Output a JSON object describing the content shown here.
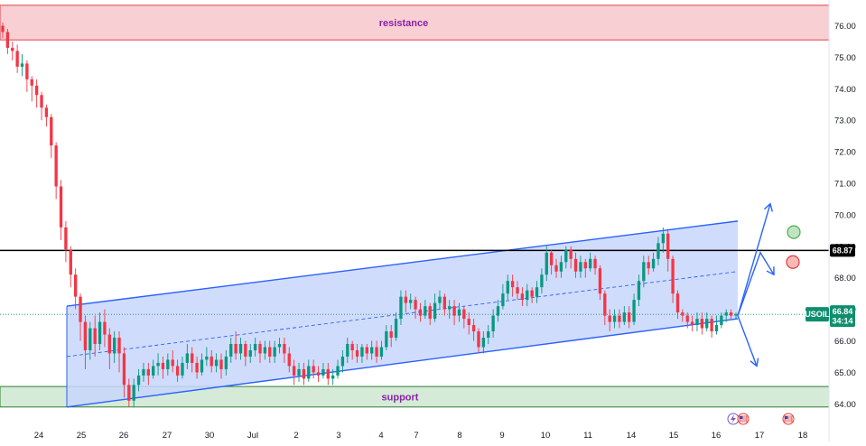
{
  "chart_data": {
    "type": "candlestick",
    "symbol": "USOIL",
    "last_price": "66.84",
    "countdown": "34:14",
    "level_line_label": "68.87",
    "level_line": 68.87,
    "ylim": [
      63.88,
      76.65
    ],
    "yticks": [
      "76.00",
      "75.00",
      "74.00",
      "73.00",
      "72.00",
      "71.00",
      "70.00",
      "69.00",
      "68.00",
      "67.00",
      "66.00",
      "65.00",
      "64.00"
    ],
    "xticks": [
      "24",
      "25",
      "26",
      "27",
      "30",
      "Jul",
      "2",
      "3",
      "4",
      "7",
      "8",
      "9",
      "10",
      "11",
      "14",
      "15",
      "16",
      "17",
      "18"
    ],
    "resistance_zone": {
      "label": "resistance",
      "low": 75.55,
      "high": 76.65
    },
    "support_zone": {
      "label": "support",
      "low": 63.9,
      "high": 64.55
    },
    "channel": {
      "start_date": "24",
      "end_date": "16",
      "upper": [
        67.1,
        69.8
      ],
      "lower": [
        63.9,
        66.7
      ],
      "mid": [
        65.5,
        68.2
      ]
    },
    "candles": [
      [
        76.0,
        75.8,
        76.1,
        75.6
      ],
      [
        75.8,
        75.3,
        75.9,
        75.1
      ],
      [
        75.3,
        75.2,
        75.5,
        74.9
      ],
      [
        75.2,
        74.7,
        75.4,
        74.5
      ],
      [
        74.7,
        74.8,
        75.1,
        74.4
      ],
      [
        74.8,
        74.3,
        74.9,
        73.9
      ],
      [
        74.3,
        74.1,
        74.4,
        73.6
      ],
      [
        74.1,
        73.8,
        74.3,
        73.4
      ],
      [
        73.8,
        73.4,
        73.9,
        73.0
      ],
      [
        73.4,
        73.1,
        73.5,
        72.8
      ],
      [
        73.1,
        72.2,
        73.2,
        71.8
      ],
      [
        72.2,
        70.9,
        72.3,
        70.5
      ],
      [
        70.9,
        69.6,
        71.1,
        69.2
      ],
      [
        69.6,
        68.9,
        69.8,
        68.5
      ],
      [
        68.9,
        68.1,
        69.0,
        67.7
      ],
      [
        68.1,
        67.4,
        68.3,
        67.0
      ],
      [
        67.4,
        66.6,
        67.5,
        66.0
      ],
      [
        66.6,
        65.7,
        66.8,
        65.1
      ],
      [
        65.7,
        66.4,
        66.6,
        65.4
      ],
      [
        66.4,
        65.9,
        66.8,
        65.5
      ],
      [
        65.9,
        66.6,
        66.9,
        65.7
      ],
      [
        66.6,
        66.2,
        67.0,
        65.8
      ],
      [
        66.2,
        65.6,
        66.4,
        65.1
      ],
      [
        65.6,
        66.1,
        66.3,
        65.3
      ],
      [
        66.1,
        65.6,
        66.3,
        65.0
      ],
      [
        65.6,
        64.6,
        65.8,
        64.2
      ],
      [
        64.6,
        64.1,
        64.8,
        63.9
      ],
      [
        64.1,
        64.6,
        64.8,
        63.9
      ],
      [
        64.6,
        64.9,
        65.1,
        64.4
      ],
      [
        64.9,
        65.1,
        65.3,
        64.7
      ],
      [
        65.1,
        64.9,
        65.3,
        64.6
      ],
      [
        64.9,
        65.2,
        65.4,
        64.8
      ],
      [
        65.2,
        65.3,
        65.6,
        64.9
      ],
      [
        65.3,
        65.1,
        65.5,
        64.8
      ],
      [
        65.1,
        65.4,
        65.6,
        64.9
      ],
      [
        65.4,
        65.2,
        65.7,
        65.0
      ],
      [
        65.2,
        64.9,
        65.4,
        64.7
      ],
      [
        64.9,
        65.3,
        65.5,
        64.8
      ],
      [
        65.3,
        65.6,
        65.9,
        65.1
      ],
      [
        65.6,
        65.3,
        65.8,
        65.0
      ],
      [
        65.3,
        65.0,
        65.5,
        64.8
      ],
      [
        65.0,
        65.4,
        65.6,
        64.9
      ],
      [
        65.4,
        65.5,
        65.8,
        65.2
      ],
      [
        65.5,
        65.2,
        65.7,
        65.0
      ],
      [
        65.2,
        65.4,
        65.6,
        65.0
      ],
      [
        65.4,
        65.1,
        65.6,
        64.8
      ],
      [
        65.1,
        65.5,
        65.7,
        64.9
      ],
      [
        65.5,
        65.9,
        66.1,
        65.3
      ],
      [
        65.9,
        65.6,
        66.3,
        65.4
      ],
      [
        65.6,
        65.9,
        66.1,
        65.4
      ],
      [
        65.9,
        65.5,
        66.0,
        65.2
      ],
      [
        65.5,
        65.7,
        65.9,
        65.3
      ],
      [
        65.7,
        65.9,
        66.1,
        65.5
      ],
      [
        65.9,
        65.6,
        66.0,
        65.3
      ],
      [
        65.6,
        65.8,
        66.0,
        65.4
      ],
      [
        65.8,
        65.5,
        66.0,
        65.3
      ],
      [
        65.5,
        65.8,
        66.0,
        65.3
      ],
      [
        65.8,
        65.9,
        66.1,
        65.6
      ],
      [
        65.9,
        65.6,
        66.1,
        65.3
      ],
      [
        65.6,
        65.2,
        65.8,
        65.0
      ],
      [
        65.2,
        64.9,
        65.4,
        64.6
      ],
      [
        64.9,
        65.1,
        65.3,
        64.7
      ],
      [
        65.1,
        64.8,
        65.3,
        64.6
      ],
      [
        64.8,
        65.2,
        65.4,
        64.7
      ],
      [
        65.2,
        65.0,
        65.4,
        64.8
      ],
      [
        65.0,
        64.9,
        65.2,
        64.7
      ],
      [
        64.9,
        65.1,
        65.3,
        64.8
      ],
      [
        65.1,
        64.8,
        65.3,
        64.6
      ],
      [
        64.8,
        64.9,
        65.1,
        64.6
      ],
      [
        64.9,
        65.2,
        65.4,
        64.8
      ],
      [
        65.2,
        65.5,
        65.7,
        65.0
      ],
      [
        65.5,
        65.9,
        66.1,
        65.3
      ],
      [
        65.9,
        65.7,
        66.0,
        65.4
      ],
      [
        65.7,
        65.5,
        65.9,
        65.3
      ],
      [
        65.5,
        65.8,
        65.9,
        65.3
      ],
      [
        65.8,
        65.6,
        65.9,
        65.4
      ],
      [
        65.6,
        65.8,
        66.0,
        65.4
      ],
      [
        65.8,
        65.5,
        66.0,
        65.3
      ],
      [
        65.5,
        65.8,
        66.0,
        65.4
      ],
      [
        65.8,
        66.3,
        66.5,
        65.7
      ],
      [
        66.3,
        66.1,
        66.5,
        65.8
      ],
      [
        66.1,
        66.7,
        66.9,
        66.0
      ],
      [
        66.7,
        67.4,
        67.6,
        66.5
      ],
      [
        67.4,
        67.2,
        67.6,
        66.9
      ],
      [
        67.2,
        67.3,
        67.5,
        67.0
      ],
      [
        67.3,
        67.0,
        67.4,
        66.7
      ],
      [
        67.0,
        66.8,
        67.2,
        66.6
      ],
      [
        66.8,
        67.1,
        67.3,
        66.7
      ],
      [
        67.1,
        66.7,
        67.2,
        66.5
      ],
      [
        66.7,
        67.2,
        67.5,
        66.6
      ],
      [
        67.2,
        67.4,
        67.6,
        67.0
      ],
      [
        67.4,
        67.0,
        67.5,
        66.8
      ],
      [
        67.0,
        67.1,
        67.3,
        66.7
      ],
      [
        67.1,
        66.8,
        67.3,
        66.5
      ],
      [
        66.8,
        67.0,
        67.2,
        66.6
      ],
      [
        67.0,
        66.7,
        67.1,
        66.4
      ],
      [
        66.7,
        66.5,
        66.9,
        66.2
      ],
      [
        66.5,
        66.3,
        66.7,
        66.0
      ],
      [
        66.3,
        65.8,
        66.4,
        65.6
      ],
      [
        65.8,
        66.1,
        66.3,
        65.6
      ],
      [
        66.1,
        66.3,
        66.5,
        65.9
      ],
      [
        66.3,
        66.8,
        67.0,
        66.1
      ],
      [
        66.8,
        67.1,
        67.3,
        66.6
      ],
      [
        67.1,
        67.5,
        67.8,
        67.0
      ],
      [
        67.5,
        67.9,
        68.1,
        67.3
      ],
      [
        67.9,
        67.7,
        68.1,
        67.4
      ],
      [
        67.7,
        67.5,
        67.9,
        67.3
      ],
      [
        67.5,
        67.3,
        67.7,
        67.1
      ],
      [
        67.3,
        67.6,
        67.8,
        67.1
      ],
      [
        67.6,
        67.4,
        67.7,
        67.2
      ],
      [
        67.4,
        67.7,
        67.9,
        67.2
      ],
      [
        67.7,
        68.1,
        68.3,
        67.5
      ],
      [
        68.1,
        68.8,
        69.0,
        67.9
      ],
      [
        68.8,
        68.4,
        68.9,
        68.1
      ],
      [
        68.4,
        68.2,
        68.6,
        68.0
      ],
      [
        68.2,
        68.5,
        68.7,
        68.0
      ],
      [
        68.5,
        68.9,
        69.0,
        68.3
      ],
      [
        68.9,
        68.6,
        69.0,
        68.3
      ],
      [
        68.6,
        68.2,
        68.8,
        68.0
      ],
      [
        68.2,
        68.5,
        68.7,
        68.0
      ],
      [
        68.5,
        68.3,
        68.6,
        68.0
      ],
      [
        68.3,
        68.6,
        68.8,
        68.2
      ],
      [
        68.6,
        68.3,
        68.7,
        68.1
      ],
      [
        68.3,
        67.5,
        68.4,
        67.3
      ],
      [
        67.5,
        66.8,
        67.6,
        66.5
      ],
      [
        66.8,
        66.6,
        67.0,
        66.3
      ],
      [
        66.6,
        66.8,
        67.0,
        66.4
      ],
      [
        66.8,
        66.6,
        67.0,
        66.4
      ],
      [
        66.6,
        66.9,
        67.1,
        66.5
      ],
      [
        66.9,
        66.6,
        67.1,
        66.4
      ],
      [
        66.6,
        67.3,
        67.5,
        66.5
      ],
      [
        67.3,
        67.9,
        68.1,
        67.1
      ],
      [
        67.9,
        68.5,
        68.7,
        67.7
      ],
      [
        68.5,
        68.3,
        68.7,
        68.1
      ],
      [
        68.3,
        68.6,
        68.8,
        68.2
      ],
      [
        68.6,
        69.1,
        69.3,
        68.4
      ],
      [
        69.1,
        69.4,
        69.6,
        68.8
      ],
      [
        69.4,
        68.6,
        69.5,
        68.2
      ],
      [
        68.6,
        67.5,
        68.7,
        67.2
      ],
      [
        67.5,
        66.9,
        67.6,
        66.7
      ],
      [
        66.9,
        66.8,
        67.0,
        66.6
      ],
      [
        66.8,
        66.6,
        66.9,
        66.4
      ],
      [
        66.6,
        66.5,
        66.8,
        66.3
      ],
      [
        66.5,
        66.7,
        66.9,
        66.3
      ],
      [
        66.7,
        66.4,
        66.9,
        66.2
      ],
      [
        66.4,
        66.7,
        66.9,
        66.3
      ],
      [
        66.7,
        66.3,
        66.8,
        66.1
      ],
      [
        66.3,
        66.5,
        66.8,
        66.2
      ],
      [
        66.5,
        66.8,
        66.9,
        66.4
      ],
      [
        66.8,
        66.9,
        67.0,
        66.6
      ],
      [
        66.9,
        66.8,
        67.0,
        66.7
      ],
      [
        66.8,
        66.84,
        66.9,
        66.7
      ]
    ],
    "scenario_arrows": [
      {
        "direction": "up",
        "from": 66.8,
        "to": 70.35
      },
      {
        "direction": "up-then-down",
        "from": 66.8,
        "peak": 68.8,
        "to": 68.1
      },
      {
        "direction": "down",
        "from": 66.8,
        "to": 65.2
      }
    ],
    "markers": [
      {
        "color": "#4caf50",
        "value": 69.45
      },
      {
        "color": "#e53935",
        "value": 68.5
      }
    ],
    "colors": {
      "up": "#089981",
      "down": "#f23645",
      "channel": "#2962ff",
      "channel_fill": "#c8d6fb",
      "resistance_fill": "#f8cfd3",
      "resistance_border": "#e0404e",
      "support_fill": "#d5ead7",
      "support_border": "#2e7d32",
      "price_badge": "#0f8e6e",
      "level_line": "#000000",
      "zone_text": "#8b22a8"
    }
  }
}
